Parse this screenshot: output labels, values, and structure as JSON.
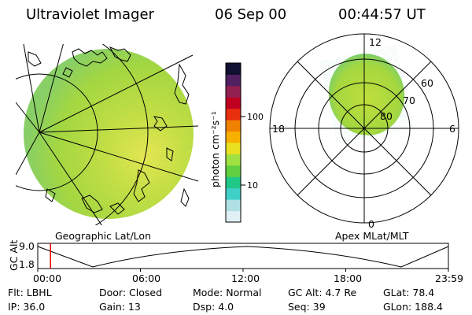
{
  "header": {
    "title": "Ultraviolet Imager",
    "date": "06 Sep 00",
    "time": "00:44:57 UT"
  },
  "colorbar": {
    "label": "photon cm⁻²s⁻¹",
    "ticks": [
      "100",
      "10"
    ],
    "colors": [
      "#e0f0f4",
      "#b0e0e4",
      "#40d0c8",
      "#20c888",
      "#60d040",
      "#a0e040",
      "#e8e020",
      "#f8b000",
      "#f08000",
      "#e83010",
      "#c00020",
      "#902050",
      "#502060",
      "#101030"
    ]
  },
  "geographic": {
    "caption": "Geographic Lat/Lon",
    "disc_color": "#b4dc3c",
    "bright_color": "#e8e84a",
    "dim_color": "#6cc8a0"
  },
  "polar": {
    "caption": "Apex MLat/MLT",
    "mlt_labels": {
      "top": "12",
      "left": "18",
      "right": "6",
      "bottom": "0"
    },
    "lat_labels": [
      "60",
      "70",
      "80"
    ]
  },
  "timeline": {
    "ylabel": "GC Alt",
    "yticks": [
      "9.0",
      "1.8"
    ],
    "xticks": [
      "00:00",
      "06:00",
      "12:00",
      "18:00",
      "23:59"
    ],
    "current_time_fraction": 0.031,
    "marker_color": "#e00000"
  },
  "footer": {
    "row1": {
      "filter": "Flt: LBHL",
      "door": "Door: Closed",
      "mode": "Mode: Normal",
      "gc_alt": "GC Alt: 4.7 Re",
      "glat": "GLat: 78.4"
    },
    "row2": {
      "ip": "IP: 36.0",
      "gain": "Gain: 13",
      "dsp": "Dsp: 4.0",
      "seq": "Seq: 39",
      "glon": "GLon: 188.4"
    }
  }
}
